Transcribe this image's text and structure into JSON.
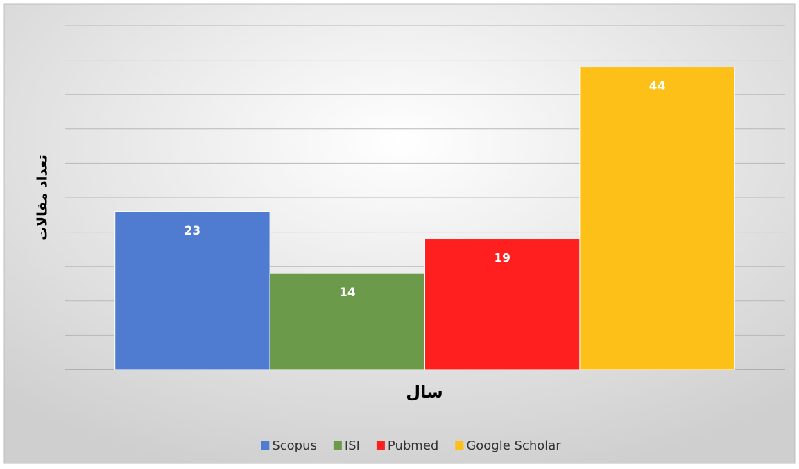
{
  "chart_data": {
    "type": "bar",
    "y_label": "تعداد مقالات",
    "x_label": "سال",
    "categories": [
      null
    ],
    "series": [
      {
        "name": "Scopus",
        "color": "#4f7bd0",
        "values": [
          23
        ]
      },
      {
        "name": "ISI",
        "color": "#6b9a4a",
        "values": [
          14
        ]
      },
      {
        "name": "Pubmed",
        "color": "#ff1f1f",
        "values": [
          19
        ]
      },
      {
        "name": "Google Scholar",
        "color": "#fcc018",
        "values": [
          44
        ]
      }
    ],
    "ylim": [
      0,
      50
    ],
    "yticks": [
      0,
      5,
      10,
      15,
      20,
      25,
      30,
      35,
      40,
      45,
      50
    ],
    "grid": true,
    "legend": "bottom"
  }
}
